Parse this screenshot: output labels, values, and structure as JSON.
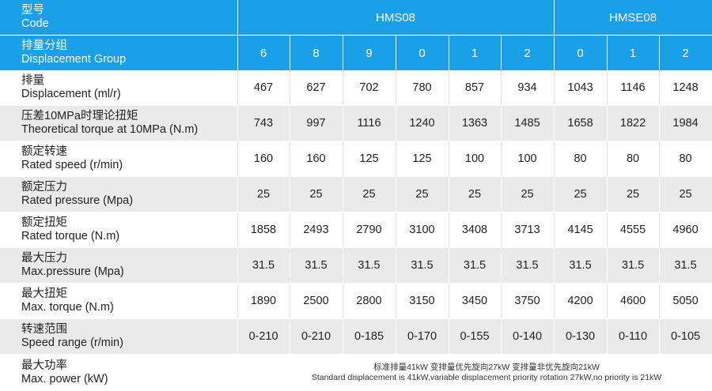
{
  "header": {
    "code_zh": "型号",
    "code_en": "Code",
    "group_zh": "排量分组",
    "group_en": "Displacement Group",
    "models": [
      {
        "name": "HMS08",
        "span": 6
      },
      {
        "name": "HMSE08",
        "span": 3
      }
    ],
    "groups": [
      "6",
      "8",
      "9",
      "0",
      "1",
      "2",
      "0",
      "1",
      "2"
    ]
  },
  "rows": [
    {
      "zh": "排量",
      "en": "Displacement (ml/r)",
      "values": [
        "467",
        "627",
        "702",
        "780",
        "857",
        "934",
        "1043",
        "1146",
        "1248"
      ]
    },
    {
      "zh": "压差10MPa时理论扭矩",
      "en": "Theoretical torque at 10MPa (N.m)",
      "values": [
        "743",
        "997",
        "1116",
        "1240",
        "1363",
        "1485",
        "1658",
        "1822",
        "1984"
      ]
    },
    {
      "zh": "额定转速",
      "en": "Rated speed (r/min)",
      "values": [
        "160",
        "160",
        "125",
        "125",
        "100",
        "100",
        "80",
        "80",
        "80"
      ]
    },
    {
      "zh": "额定压力",
      "en": "Rated pressure (Mpa)",
      "values": [
        "25",
        "25",
        "25",
        "25",
        "25",
        "25",
        "25",
        "25",
        "25"
      ]
    },
    {
      "zh": "额定扭矩",
      "en": "Rated torque (N.m)",
      "values": [
        "1858",
        "2493",
        "2790",
        "3100",
        "3408",
        "3713",
        "4145",
        "4555",
        "4960"
      ]
    },
    {
      "zh": "最大压力",
      "en": "Max.pressure (Mpa)",
      "values": [
        "31.5",
        "31.5",
        "31.5",
        "31.5",
        "31.5",
        "31.5",
        "31.5",
        "31.5",
        "31.5"
      ]
    },
    {
      "zh": "最大扭矩",
      "en": "Max. torque (N.m)",
      "values": [
        "1890",
        "2500",
        "2800",
        "3150",
        "3450",
        "3750",
        "4200",
        "4600",
        "5050"
      ]
    },
    {
      "zh": "转速范围",
      "en": "Speed range (r/min)",
      "values": [
        "0-210",
        "0-210",
        "0-185",
        "0-170",
        "0-155",
        "0-140",
        "0-130",
        "0-110",
        "0-105"
      ]
    }
  ],
  "footer": {
    "zh": "最大功率",
    "en": "Max. power (kW)",
    "note_zh": "标准排量41kW   变排量优先旋向27kW   变排量非优先旋向21kW",
    "note_en": "Standard displacement is 41kW,variable displacement priority rotation 27kW,no priority is 21kW"
  }
}
